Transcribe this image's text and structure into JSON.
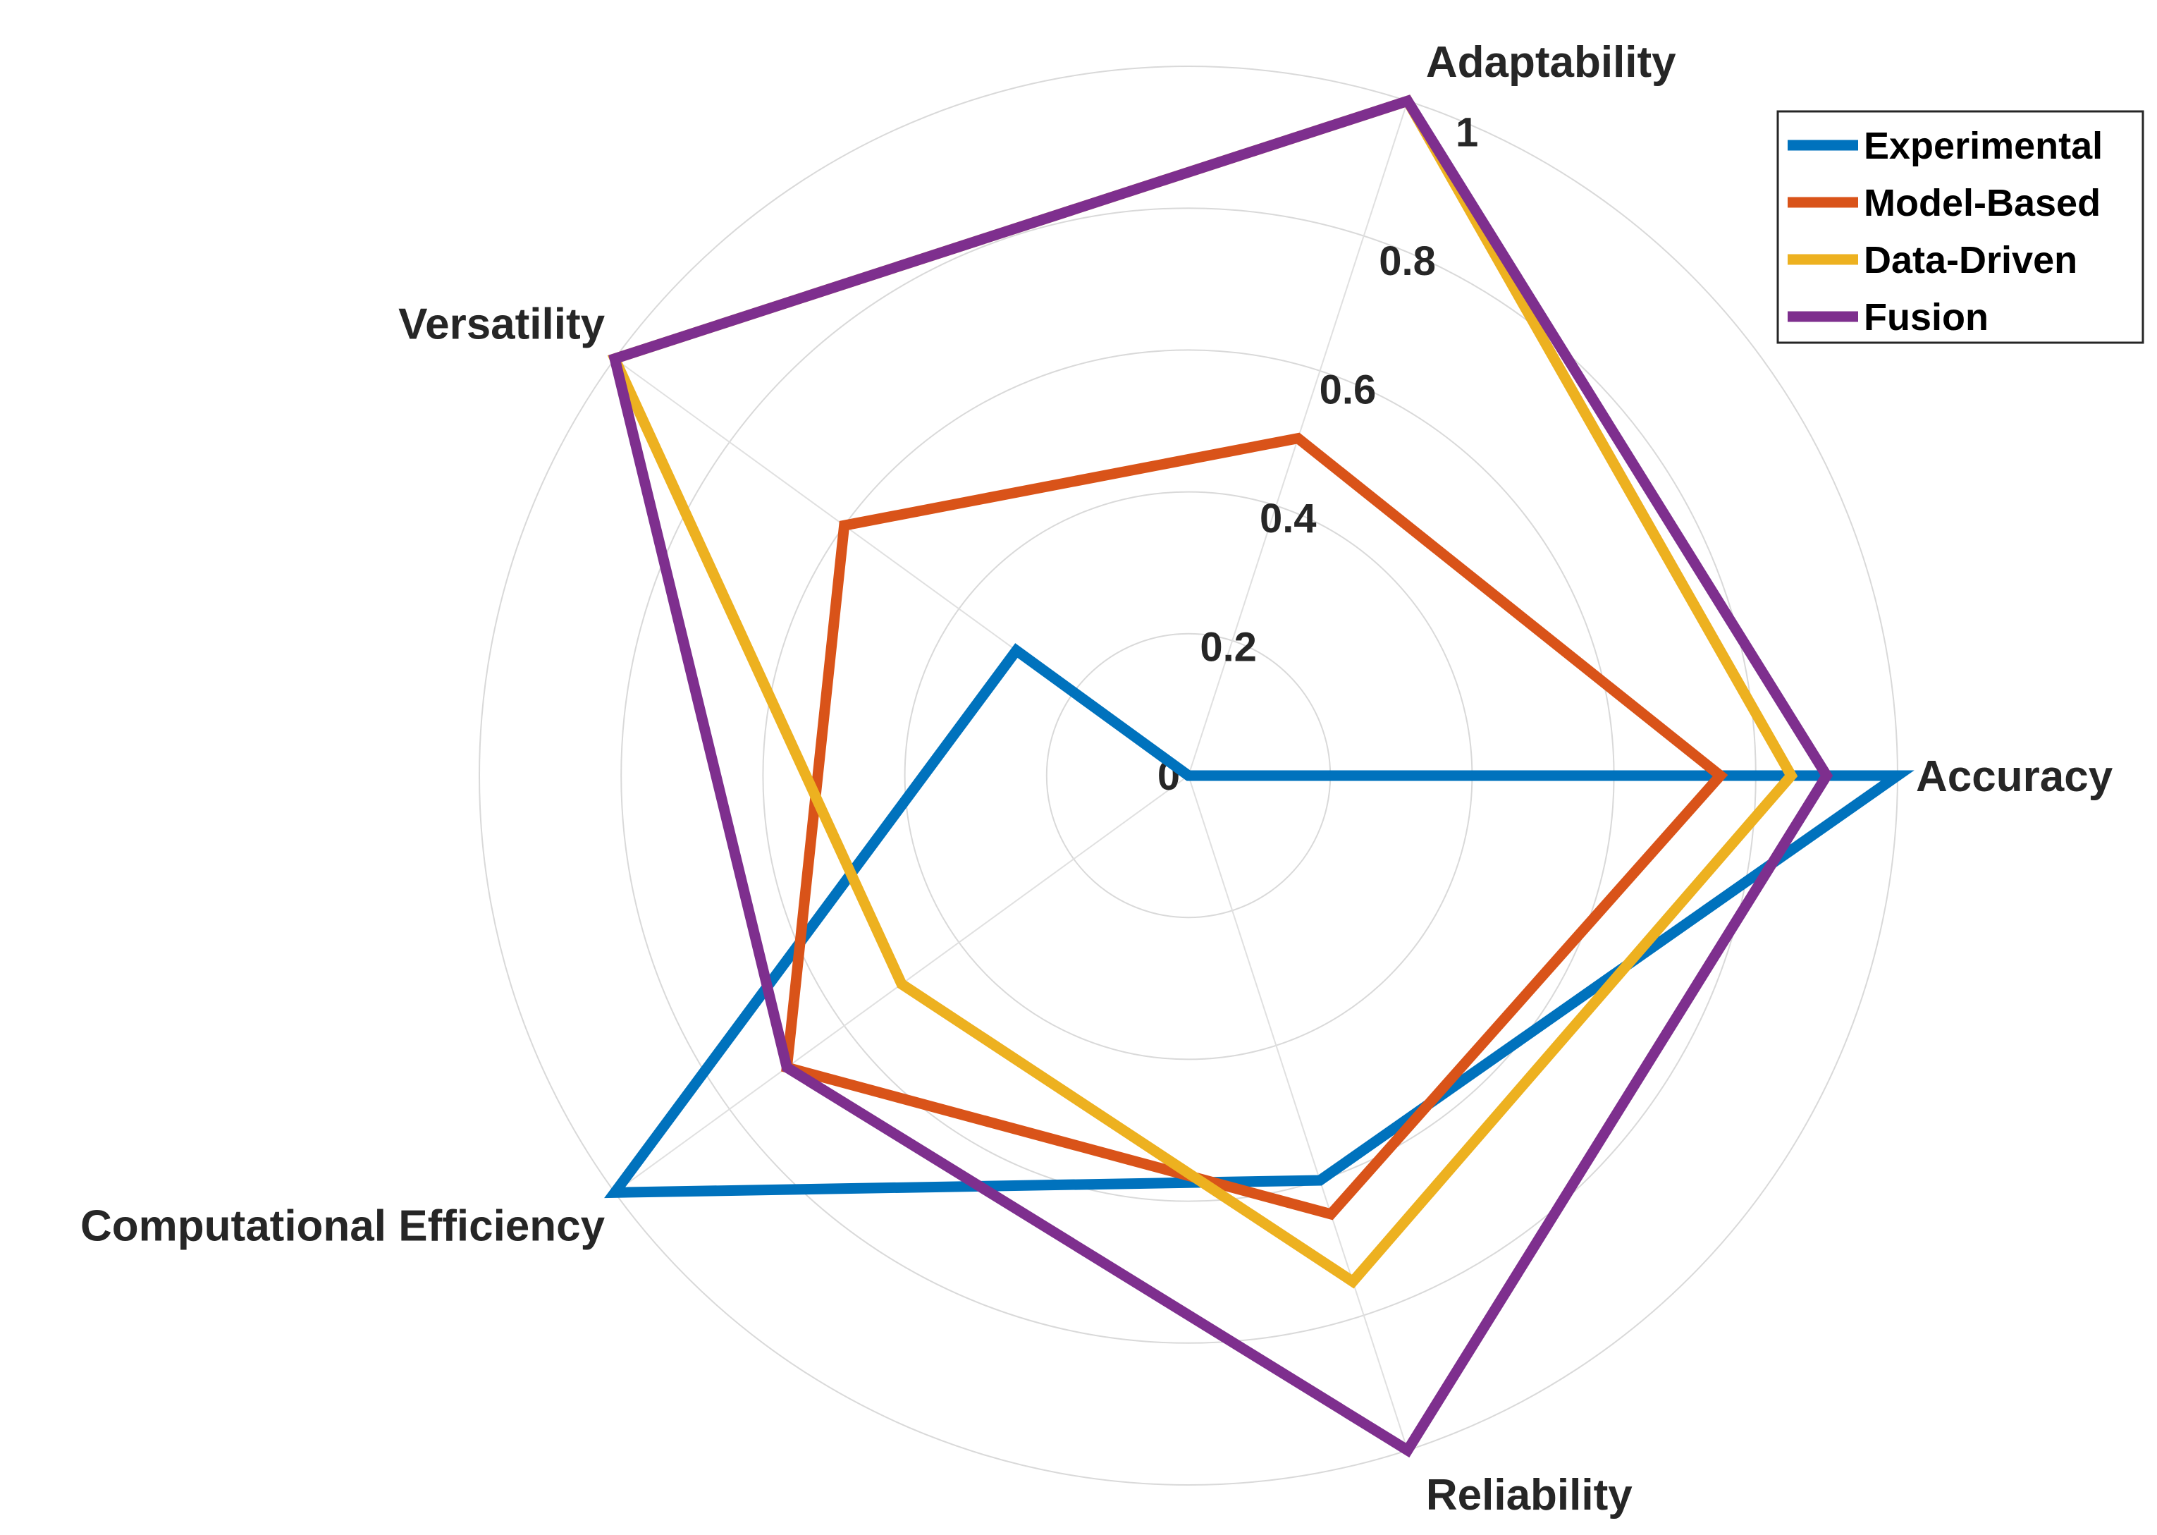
{
  "chart_data": {
    "type": "radar",
    "axes": [
      "Accuracy",
      "Adaptability",
      "Versatility",
      "Computational Efficiency",
      "Reliability"
    ],
    "rlim": [
      0,
      1
    ],
    "rticks": [
      0,
      0.2,
      0.4,
      0.6,
      0.8,
      1
    ],
    "rtick_labels": [
      "0",
      "0.2",
      "0.4",
      "0.6",
      "0.8",
      "1"
    ],
    "grid": true,
    "legend": "top-right",
    "series": [
      {
        "name": "Experimental",
        "color": "#0072BD",
        "values": [
          1.0,
          0.0,
          0.3,
          1.0,
          0.6
        ]
      },
      {
        "name": "Model-Based",
        "color": "#D95319",
        "values": [
          0.75,
          0.5,
          0.6,
          0.7,
          0.65
        ]
      },
      {
        "name": "Data-Driven",
        "color": "#EDB120",
        "values": [
          0.85,
          1.0,
          1.0,
          0.5,
          0.75
        ]
      },
      {
        "name": "Fusion",
        "color": "#7E2F8E",
        "values": [
          0.9,
          1.0,
          1.0,
          0.7,
          1.0
        ]
      }
    ]
  }
}
